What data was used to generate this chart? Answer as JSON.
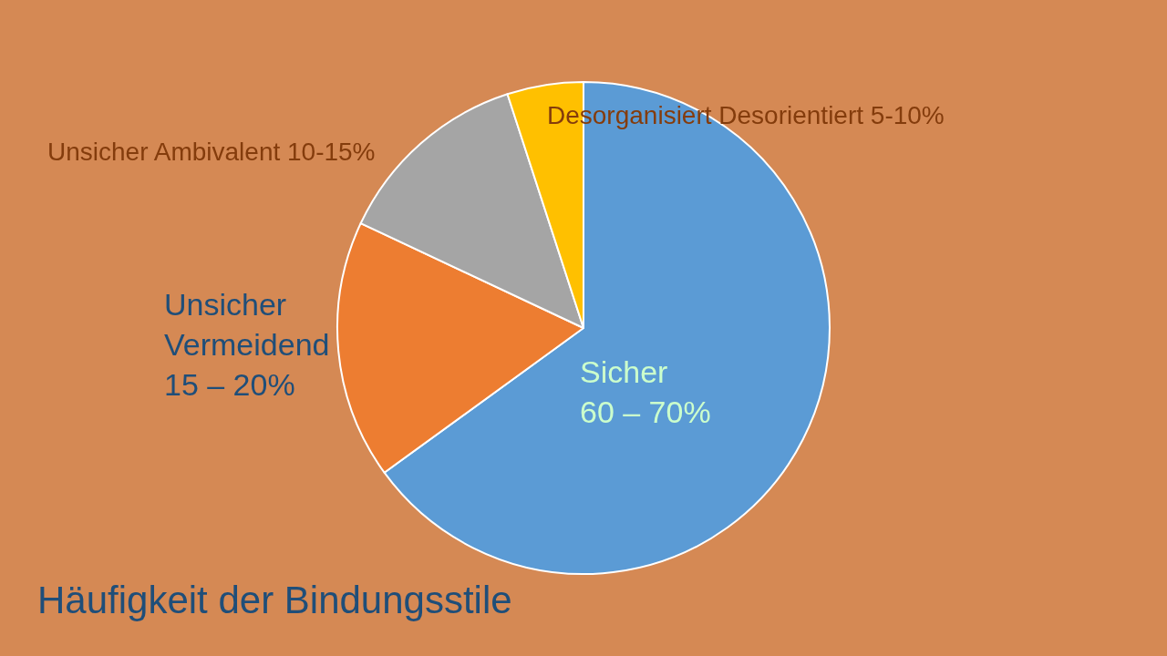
{
  "chart_data": {
    "type": "pie",
    "title": "Häufigkeit der Bindungsstile",
    "categories": [
      "Sicher\n60 – 70%",
      "Unsicher\nVermeidend\n15 – 20%",
      "Unsicher Ambivalent 10-15%",
      "Desorganisiert Desorientiert 5-10%"
    ],
    "values": [
      65,
      17,
      13,
      5
    ],
    "colors": [
      "#5b9bd5",
      "#ed7d31",
      "#a5a5a5",
      "#ffc000"
    ]
  }
}
